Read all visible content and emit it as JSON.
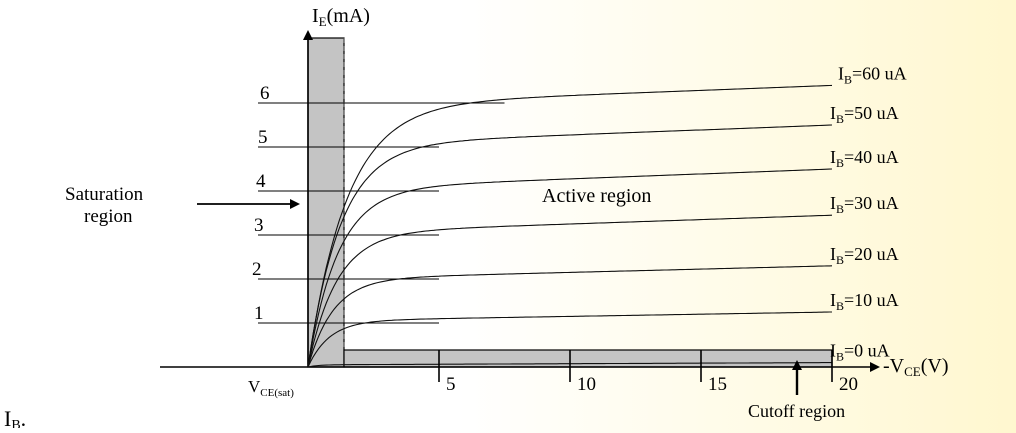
{
  "chart_data": {
    "type": "line",
    "title": "",
    "ylabel": {
      "main": "I",
      "sub": "E",
      "rest": "(mA)"
    },
    "xlabel": {
      "pre": "-V",
      "sub": "CE",
      "rest": "(V)"
    },
    "origin_label": {
      "main": "V",
      "sub": "CE(sat)"
    },
    "x_ticks": [
      5,
      10,
      15,
      20
    ],
    "y_ticks": [
      1,
      2,
      3,
      4,
      5,
      6
    ],
    "xlim": [
      0,
      20
    ],
    "ylim": [
      0,
      6.8
    ],
    "series": [
      {
        "name": "IB=0 uA",
        "label_main": "I",
        "label_sub": "B",
        "label_rest": "=0 uA",
        "knee": 1.6,
        "start": 0.05,
        "end": 0.1
      },
      {
        "name": "IB=10 uA",
        "label_main": "I",
        "label_sub": "B",
        "label_rest": "=10 uA",
        "knee": 3.4,
        "start": 1.05,
        "end": 1.25
      },
      {
        "name": "IB=20 uA",
        "label_main": "I",
        "label_sub": "B",
        "label_rest": "=20 uA",
        "knee": 4.0,
        "start": 2.0,
        "end": 2.3
      },
      {
        "name": "IB=30 uA",
        "label_main": "I",
        "label_sub": "B",
        "label_rest": "=30 uA",
        "knee": 4.6,
        "start": 3.05,
        "end": 3.45
      },
      {
        "name": "IB=40 uA",
        "label_main": "I",
        "label_sub": "B",
        "label_rest": "=40 uA",
        "knee": 4.8,
        "start": 4.05,
        "end": 4.5
      },
      {
        "name": "IB=50 uA",
        "label_main": "I",
        "label_sub": "B",
        "label_rest": "=50 uA",
        "knee": 5.2,
        "start": 5.05,
        "end": 5.5
      },
      {
        "name": "IB=60 uA",
        "label_main": "I",
        "label_sub": "B",
        "label_rest": "=60 uA",
        "knee": 6.2,
        "start": 5.95,
        "end": 6.4
      }
    ],
    "annotations": {
      "saturation_line1": "Saturation",
      "saturation_line2": "region",
      "active": "Active region",
      "cutoff": "Cutoff region"
    }
  },
  "footer_text": {
    "main": "I",
    "sub": "B",
    "rest": "."
  }
}
